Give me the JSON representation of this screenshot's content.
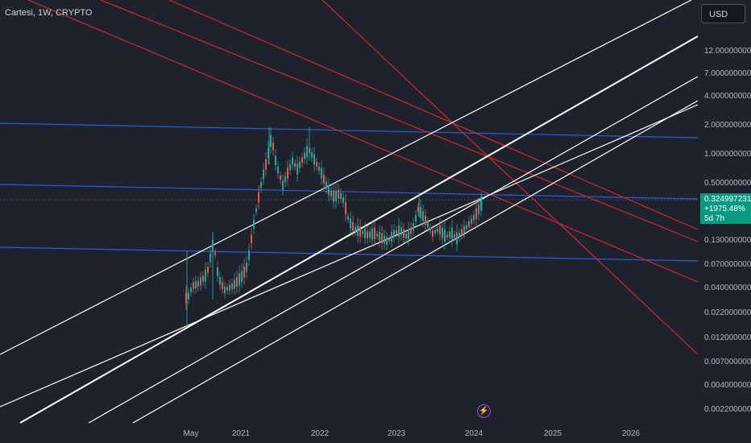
{
  "header": {
    "title": "Cartesi, 1W, CRYPTO",
    "currency_label": "USD"
  },
  "price_badge": {
    "price": "0.324997231",
    "change": "+1975.48%",
    "countdown": "5d 7h"
  },
  "y_axis_labels": [
    "12.000000000",
    "7.000000000",
    "4.000000000",
    "2.000000000",
    "1.000000000",
    "0.500000000",
    "0.130000000",
    "0.070000000",
    "0.040000000",
    "0.022000000",
    "0.012000000",
    "0.007000000",
    "0.004000000",
    "0.002200000"
  ],
  "x_axis_labels": [
    "May",
    "2021",
    "2022",
    "2023",
    "2024",
    "2025",
    "2026"
  ],
  "events_icon": "lightning-icon",
  "colors": {
    "background": "#1e222d",
    "up_candle": "#26a69a",
    "down_candle": "#ef5350",
    "trend_red": "#d3262e",
    "trend_white": "#ffffff",
    "trend_blue": "#2f5bdb",
    "price_badge": "#089981",
    "events": "#e040fb"
  }
}
